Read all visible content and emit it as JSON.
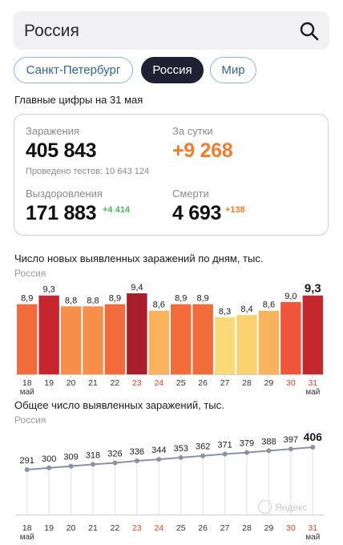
{
  "search": {
    "value": "Россия"
  },
  "tabs": [
    {
      "label": "Санкт-Петербург",
      "active": false
    },
    {
      "label": "Россия",
      "active": true
    },
    {
      "label": "Мир",
      "active": false
    }
  ],
  "summary": {
    "title": "Главные цифры на 31 мая",
    "infected_label": "Заражения",
    "infected_value": "405 843",
    "tests_text": "Проведено тестов: 10 643 124",
    "daily_label": "За сутки",
    "daily_value": "+9 268",
    "recovered_label": "Выздоровления",
    "recovered_value": "171 883",
    "recovered_delta": "+4 414",
    "deaths_label": "Смерти",
    "deaths_value": "4 693",
    "deaths_delta": "+138"
  },
  "chart_data": [
    {
      "type": "bar",
      "title": "Число новых выявленных заражений по дням, тыс.",
      "subtitle": "Россия",
      "categories": [
        "18",
        "19",
        "20",
        "21",
        "22",
        "23",
        "24",
        "25",
        "26",
        "27",
        "28",
        "29",
        "30",
        "31"
      ],
      "month_label": "май",
      "values": [
        8.9,
        9.3,
        8.8,
        8.8,
        8.9,
        9.4,
        8.6,
        8.9,
        8.9,
        8.3,
        8.4,
        8.6,
        9.0,
        9.3
      ],
      "value_labels": [
        "8,9",
        "9,3",
        "8,8",
        "8,8",
        "8,9",
        "9,4",
        "8,6",
        "8,9",
        "8,9",
        "8,3",
        "8,4",
        "8,6",
        "9,0",
        "9,3"
      ],
      "colors": [
        "#f26b3a",
        "#c4282e",
        "#f58f4a",
        "#f58f4a",
        "#f26b3a",
        "#a91e2c",
        "#f8b35c",
        "#f26b3a",
        "#f26b3a",
        "#fbd977",
        "#fbd06e",
        "#f8b35c",
        "#f0543a",
        "#c4282e"
      ],
      "weekend_days": [
        "23",
        "24",
        "30",
        "31"
      ]
    },
    {
      "type": "line",
      "title": "Общее число выявленных заражений, тыс.",
      "subtitle": "Россия",
      "categories": [
        "18",
        "19",
        "20",
        "21",
        "22",
        "23",
        "24",
        "25",
        "26",
        "27",
        "28",
        "29",
        "30",
        "31"
      ],
      "month_label": "май",
      "values": [
        291,
        300,
        309,
        318,
        326,
        336,
        344,
        353,
        362,
        371,
        379,
        388,
        397,
        406
      ],
      "color": "#8a93a6"
    }
  ],
  "watermark": "Яндекс",
  "colors": {
    "weekend": "#e0402f",
    "accent": "#f07d2d",
    "positive": "#4fb56a"
  }
}
